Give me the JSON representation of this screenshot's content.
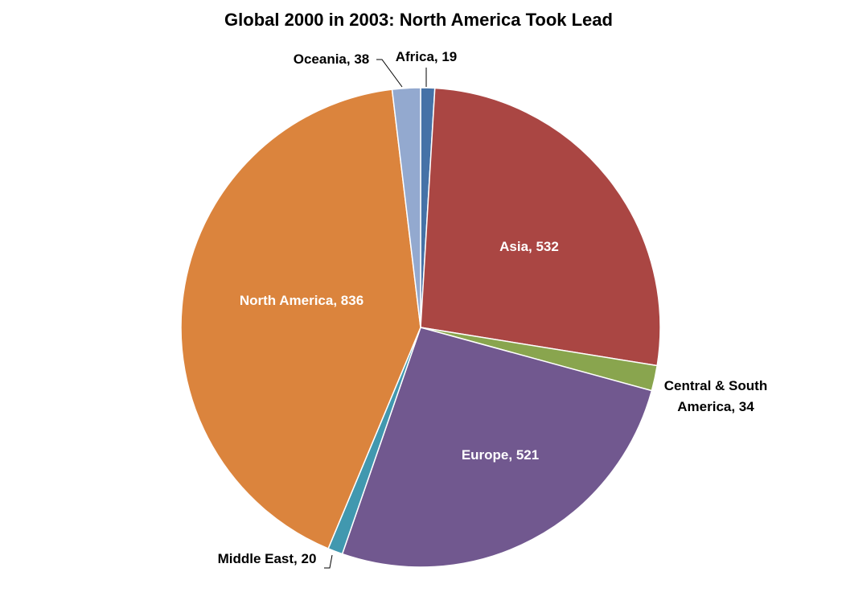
{
  "chart_data": {
    "type": "pie",
    "title": "Global 2000 in 2003: North America Took Lead",
    "start_angle": "top, clockwise",
    "slices": [
      {
        "label": "Africa",
        "value": 19,
        "color": "#4572A7",
        "text": "Africa, 19"
      },
      {
        "label": "Asia",
        "value": 532,
        "color": "#AA4643",
        "text": "Asia, 532"
      },
      {
        "label": "Central & South America",
        "value": 34,
        "color": "#89A54E",
        "text": [
          "Central & South",
          "America, 34"
        ]
      },
      {
        "label": "Europe",
        "value": 521,
        "color": "#71588F",
        "text": "Europe, 521"
      },
      {
        "label": "Middle East",
        "value": 20,
        "color": "#4198AF",
        "text": "Middle East, 20"
      },
      {
        "label": "North America",
        "value": 836,
        "color": "#DB843D",
        "text": "North America, 836"
      },
      {
        "label": "Oceania",
        "value": 38,
        "color": "#93A9CF",
        "text": "Oceania, 38"
      }
    ]
  }
}
